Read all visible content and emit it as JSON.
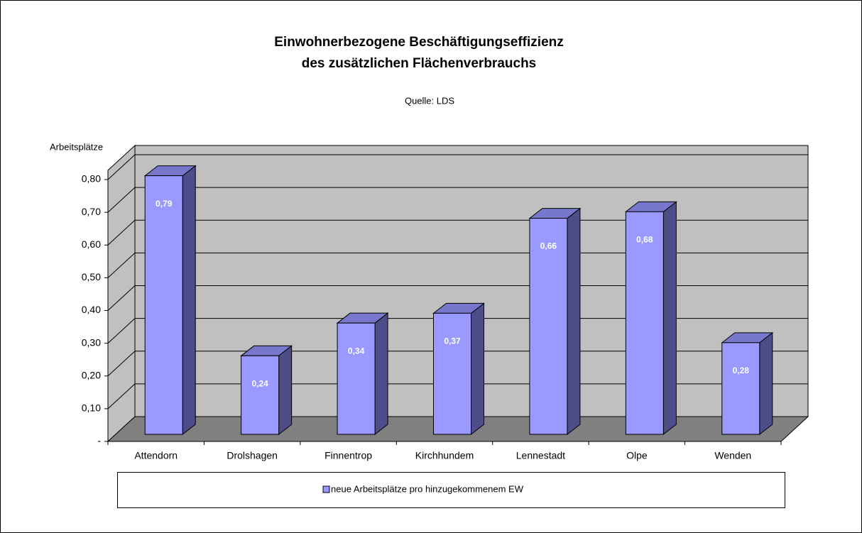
{
  "chart_data": {
    "type": "bar3d",
    "title": [
      "Einwohnerbezogene Beschäftigungseffizienz",
      "des zusätzlichen Flächenverbrauchs"
    ],
    "subtitle": "Quelle: LDS",
    "y_label": "Arbeitsplätze",
    "categories": [
      "Attendorn",
      "Drolshagen",
      "Finnentrop",
      "Kirchhundem",
      "Lennestadt",
      "Olpe",
      "Wenden"
    ],
    "series": [
      {
        "name": "neue Arbeitsplätze pro hinzugekommenem EW",
        "color": "#9999ff",
        "values": [
          0.79,
          0.24,
          0.34,
          0.37,
          0.66,
          0.68,
          0.28
        ],
        "value_labels": [
          "0,79",
          "0,24",
          "0,34",
          "0,37",
          "0,66",
          "0,68",
          "0,28"
        ]
      }
    ],
    "ylim": [
      0,
      0.8
    ],
    "yticks": [
      {
        "value": 0,
        "label": "-"
      },
      {
        "value": 0.1,
        "label": "0,10"
      },
      {
        "value": 0.2,
        "label": "0,20"
      },
      {
        "value": 0.3,
        "label": "0,30"
      },
      {
        "value": 0.4,
        "label": "0,40"
      },
      {
        "value": 0.5,
        "label": "0,50"
      },
      {
        "value": 0.6,
        "label": "0,60"
      },
      {
        "value": 0.7,
        "label": "0,70"
      },
      {
        "value": 0.8,
        "label": "0,80"
      }
    ],
    "grid": true,
    "legend": "bottom"
  }
}
